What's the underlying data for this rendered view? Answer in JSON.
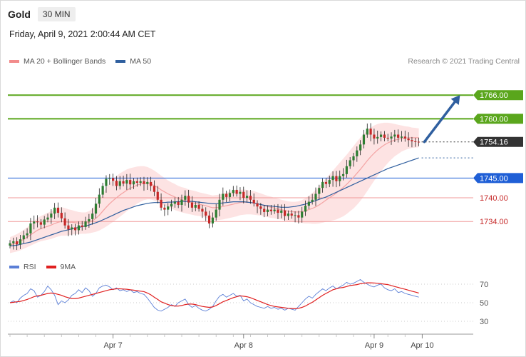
{
  "header": {
    "instrument": "Gold",
    "timeframe": "30 MIN",
    "datetime": "Friday, April 9, 2021 2:00:44 AM CET",
    "credit": "Research © 2021 Trading Central"
  },
  "legend": {
    "main": [
      {
        "label": "MA 20 + Bollinger Bands",
        "color": "#f28b8b"
      },
      {
        "label": "MA 50",
        "color": "#2f5f9f"
      }
    ],
    "rsi": [
      {
        "label": "RSI",
        "color": "#5b7fd6"
      },
      {
        "label": "9MA",
        "color": "#e02020"
      }
    ]
  },
  "colors": {
    "bull": "#2e7d32",
    "bear": "#c62828",
    "bollinger_fill": "#fde3e3",
    "ma20": "#f4a3a3",
    "ma50": "#2f5f9f",
    "target": "#5aa61c",
    "pivot": "#1f5fd6",
    "support": "#f19a9a",
    "support_text": "#c62828",
    "current": "#333333",
    "arrow": "#2f5f9f"
  },
  "chart_data": [
    {
      "type": "candlestick",
      "title": "Gold 30 MIN",
      "ylim": [
        1725,
        1772
      ],
      "x_tick_labels": [
        {
          "label": "Apr 7",
          "index": 30
        },
        {
          "label": "Apr 8",
          "index": 68
        },
        {
          "label": "Apr 9",
          "index": 106
        },
        {
          "label": "Apr 10",
          "index": 120
        }
      ],
      "price_levels": [
        {
          "value": 1766.0,
          "label": "1766.00",
          "kind": "target"
        },
        {
          "value": 1760.0,
          "label": "1760.00",
          "kind": "target"
        },
        {
          "value": 1754.16,
          "label": "1754.16",
          "kind": "current"
        },
        {
          "value": 1745.0,
          "label": "1745.00",
          "kind": "pivot"
        },
        {
          "value": 1740.0,
          "label": "1740.00",
          "kind": "support"
        },
        {
          "value": 1734.0,
          "label": "1734.00",
          "kind": "support"
        }
      ],
      "forecast_arrow": {
        "from_index": 120,
        "from": 1754.16,
        "to_index": 131,
        "to": 1766.0
      },
      "close": [
        1728.5,
        1729.0,
        1728.2,
        1729.5,
        1730.5,
        1731.0,
        1733.5,
        1734.0,
        1733.8,
        1733.2,
        1734.5,
        1735.0,
        1736.0,
        1737.5,
        1736.2,
        1734.8,
        1733.0,
        1732.0,
        1732.5,
        1731.8,
        1733.0,
        1732.6,
        1734.0,
        1734.6,
        1736.0,
        1738.5,
        1740.8,
        1743.0,
        1744.8,
        1745.0,
        1744.3,
        1743.0,
        1744.2,
        1743.6,
        1744.5,
        1743.4,
        1744.2,
        1743.8,
        1744.2,
        1743.5,
        1744.0,
        1743.0,
        1741.5,
        1739.5,
        1737.5,
        1737.0,
        1737.8,
        1738.5,
        1739.0,
        1738.2,
        1739.5,
        1740.5,
        1738.8,
        1737.5,
        1738.2,
        1737.2,
        1736.5,
        1735.5,
        1733.5,
        1735.0,
        1737.0,
        1739.5,
        1741.0,
        1740.2,
        1741.2,
        1742.0,
        1741.0,
        1741.5,
        1740.0,
        1740.5,
        1739.5,
        1738.6,
        1737.8,
        1737.2,
        1736.4,
        1737.0,
        1736.6,
        1737.0,
        1736.2,
        1736.8,
        1735.4,
        1736.0,
        1735.5,
        1735.6,
        1735.0,
        1736.5,
        1738.0,
        1739.0,
        1739.5,
        1741.0,
        1742.5,
        1744.0,
        1743.5,
        1744.5,
        1745.5,
        1744.2,
        1745.5,
        1746.0,
        1748.0,
        1749.5,
        1750.5,
        1752.0,
        1753.5,
        1756.0,
        1757.5,
        1756.0,
        1755.0,
        1755.4,
        1756.0,
        1755.2,
        1755.0,
        1755.5,
        1756.0,
        1755.2,
        1755.5,
        1755.0,
        1754.6,
        1754.3,
        1754.2,
        1754.16
      ],
      "open_note": "each candle opens at the previous close",
      "ma20": [
        1728.0,
        1728.3,
        1728.6,
        1729.0,
        1729.5,
        1730.0,
        1730.6,
        1731.2,
        1731.8,
        1732.2,
        1732.5,
        1732.8,
        1733.1,
        1733.5,
        1733.8,
        1734.0,
        1733.9,
        1733.8,
        1733.8,
        1733.7,
        1733.6,
        1733.6,
        1733.6,
        1733.8,
        1734.2,
        1734.8,
        1735.6,
        1736.6,
        1737.6,
        1738.5,
        1739.3,
        1740.0,
        1740.7,
        1741.3,
        1741.9,
        1742.4,
        1742.8,
        1743.2,
        1743.5,
        1743.7,
        1743.7,
        1743.5,
        1743.1,
        1742.6,
        1742.0,
        1741.5,
        1741.0,
        1740.6,
        1740.2,
        1739.8,
        1739.5,
        1739.3,
        1739.0,
        1738.8,
        1738.6,
        1738.4,
        1738.2,
        1738.0,
        1737.7,
        1737.5,
        1737.5,
        1737.6,
        1737.8,
        1738.0,
        1738.2,
        1738.4,
        1738.6,
        1738.8,
        1738.9,
        1738.9,
        1738.8,
        1738.7,
        1738.5,
        1738.3,
        1738.0,
        1737.8,
        1737.6,
        1737.4,
        1737.2,
        1737.0,
        1736.8,
        1736.6,
        1736.5,
        1736.4,
        1736.4,
        1736.5,
        1736.7,
        1737.0,
        1737.3,
        1737.7,
        1738.2,
        1738.8,
        1739.4,
        1740.0,
        1740.6,
        1741.2,
        1741.9,
        1742.6,
        1743.4,
        1744.3,
        1745.2,
        1746.2,
        1747.2,
        1748.3,
        1749.4,
        1750.4,
        1751.3,
        1752.1,
        1752.8,
        1753.4,
        1753.9,
        1754.3,
        1754.6,
        1754.8,
        1755.0,
        1755.1,
        1755.2,
        1755.2,
        1755.2,
        1755.2
      ],
      "ma50": [
        1727.8,
        1727.9,
        1728.0,
        1728.2,
        1728.4,
        1728.6,
        1728.8,
        1729.1,
        1729.4,
        1729.7,
        1730.0,
        1730.3,
        1730.6,
        1730.9,
        1731.2,
        1731.5,
        1731.7,
        1731.9,
        1732.1,
        1732.3,
        1732.5,
        1732.7,
        1732.9,
        1733.1,
        1733.4,
        1733.7,
        1734.0,
        1734.4,
        1734.8,
        1735.2,
        1735.6,
        1736.0,
        1736.4,
        1736.8,
        1737.1,
        1737.4,
        1737.7,
        1738.0,
        1738.2,
        1738.4,
        1738.6,
        1738.7,
        1738.8,
        1738.8,
        1738.8,
        1738.8,
        1738.9,
        1738.9,
        1739.0,
        1739.0,
        1739.1,
        1739.1,
        1739.1,
        1739.1,
        1739.0,
        1738.9,
        1738.8,
        1738.7,
        1738.6,
        1738.5,
        1738.5,
        1738.6,
        1738.7,
        1738.8,
        1738.9,
        1739.0,
        1739.0,
        1739.0,
        1739.0,
        1738.9,
        1738.8,
        1738.7,
        1738.5,
        1738.3,
        1738.1,
        1738.0,
        1737.9,
        1737.8,
        1737.7,
        1737.6,
        1737.6,
        1737.6,
        1737.7,
        1737.8,
        1738.0,
        1738.2,
        1738.4,
        1738.7,
        1739.0,
        1739.3,
        1739.6,
        1739.9,
        1740.2,
        1740.6,
        1741.0,
        1741.4,
        1741.8,
        1742.2,
        1742.6,
        1743.0,
        1743.4,
        1743.8,
        1744.2,
        1744.6,
        1745.0,
        1745.4,
        1745.8,
        1746.2,
        1746.6,
        1747.0,
        1747.4,
        1747.7,
        1748.0,
        1748.3,
        1748.6,
        1748.9,
        1749.2,
        1749.5,
        1749.8,
        1750.1
      ],
      "boll_width": [
        2.0,
        2.1,
        2.2,
        2.3,
        2.4,
        2.5,
        2.7,
        2.9,
        3.1,
        3.2,
        3.3,
        3.4,
        3.5,
        3.6,
        3.6,
        3.6,
        3.5,
        3.3,
        3.1,
        2.9,
        2.8,
        2.7,
        2.7,
        2.8,
        3.0,
        3.4,
        3.9,
        4.4,
        4.9,
        5.2,
        5.4,
        5.5,
        5.5,
        5.4,
        5.3,
        5.1,
        4.9,
        4.7,
        4.5,
        4.3,
        4.1,
        3.9,
        3.8,
        3.7,
        3.6,
        3.5,
        3.4,
        3.3,
        3.3,
        3.2,
        3.2,
        3.2,
        3.1,
        3.1,
        3.1,
        3.0,
        3.0,
        3.0,
        3.1,
        3.1,
        3.2,
        3.2,
        3.3,
        3.3,
        3.3,
        3.3,
        3.3,
        3.2,
        3.2,
        3.1,
        3.0,
        3.0,
        2.9,
        2.8,
        2.8,
        2.7,
        2.7,
        2.6,
        2.6,
        2.5,
        2.5,
        2.5,
        2.5,
        2.6,
        2.7,
        2.9,
        3.2,
        3.5,
        3.9,
        4.3,
        4.7,
        5.1,
        5.5,
        5.9,
        6.3,
        6.7,
        7.0,
        7.3,
        7.5,
        7.7,
        7.9,
        8.0,
        8.0,
        7.9,
        7.7,
        7.4,
        7.0,
        6.6,
        6.1,
        5.6,
        5.1,
        4.6,
        4.1,
        3.7,
        3.3,
        3.0,
        2.8,
        2.6,
        2.5,
        2.4
      ]
    },
    {
      "type": "line",
      "title": "RSI",
      "ylim": [
        20,
        80
      ],
      "y_ticks": [
        30,
        50,
        70
      ],
      "reference_lines": [
        50,
        70
      ],
      "series": [
        {
          "name": "RSI",
          "values": [
            50,
            52,
            50,
            55,
            58,
            60,
            65,
            63,
            56,
            58,
            62,
            68,
            64,
            58,
            48,
            52,
            50,
            53,
            58,
            60,
            64,
            61,
            66,
            63,
            57,
            60,
            66,
            68,
            69,
            67,
            64,
            66,
            63,
            64,
            62,
            64,
            61,
            62,
            60,
            59,
            55,
            50,
            45,
            42,
            41,
            43,
            45,
            48,
            46,
            50,
            52,
            54,
            48,
            45,
            47,
            44,
            42,
            41,
            43,
            46,
            52,
            57,
            59,
            56,
            58,
            60,
            57,
            58,
            52,
            54,
            50,
            48,
            46,
            45,
            44,
            46,
            44,
            45,
            43,
            44,
            42,
            44,
            43,
            42,
            46,
            50,
            54,
            57,
            55,
            59,
            62,
            65,
            63,
            66,
            68,
            65,
            67,
            69,
            72,
            70,
            71,
            73,
            75,
            72,
            70,
            68,
            67,
            69,
            70,
            66,
            64,
            63,
            65,
            61,
            62,
            60,
            59,
            58,
            57,
            56
          ]
        },
        {
          "name": "9MA",
          "values": [
            50,
            50.5,
            51,
            51.5,
            52.5,
            53.5,
            55,
            56.5,
            57.5,
            58,
            59,
            60,
            60.5,
            60,
            59,
            58,
            56.5,
            55.5,
            54.5,
            54.5,
            55,
            56,
            57,
            58,
            59,
            60,
            61,
            62,
            63,
            64,
            64.5,
            65,
            65,
            64.8,
            64.5,
            64,
            63.5,
            63,
            62.5,
            62,
            60.5,
            58.5,
            56,
            53.5,
            51,
            49.5,
            48,
            47,
            46.5,
            46.5,
            47,
            48,
            48.5,
            48.5,
            48,
            47,
            46,
            45.5,
            45,
            45.5,
            47,
            49,
            51,
            52.5,
            54,
            55.5,
            56.5,
            57.5,
            57,
            56.5,
            55.5,
            54,
            52.5,
            51,
            49.5,
            48,
            47,
            46,
            45.5,
            45,
            44.5,
            44,
            43.8,
            43.5,
            44,
            45,
            46.5,
            48.5,
            50.5,
            53,
            55.5,
            58,
            60,
            62,
            64,
            65,
            66,
            66.5,
            67.5,
            68.5,
            69,
            69.5,
            70.5,
            71,
            71.5,
            71.5,
            71.3,
            71,
            70.5,
            70,
            69.5,
            68.5,
            67.5,
            66.5,
            65.5,
            64.5,
            63.5,
            62.5,
            61.5,
            60.5
          ]
        }
      ]
    }
  ]
}
